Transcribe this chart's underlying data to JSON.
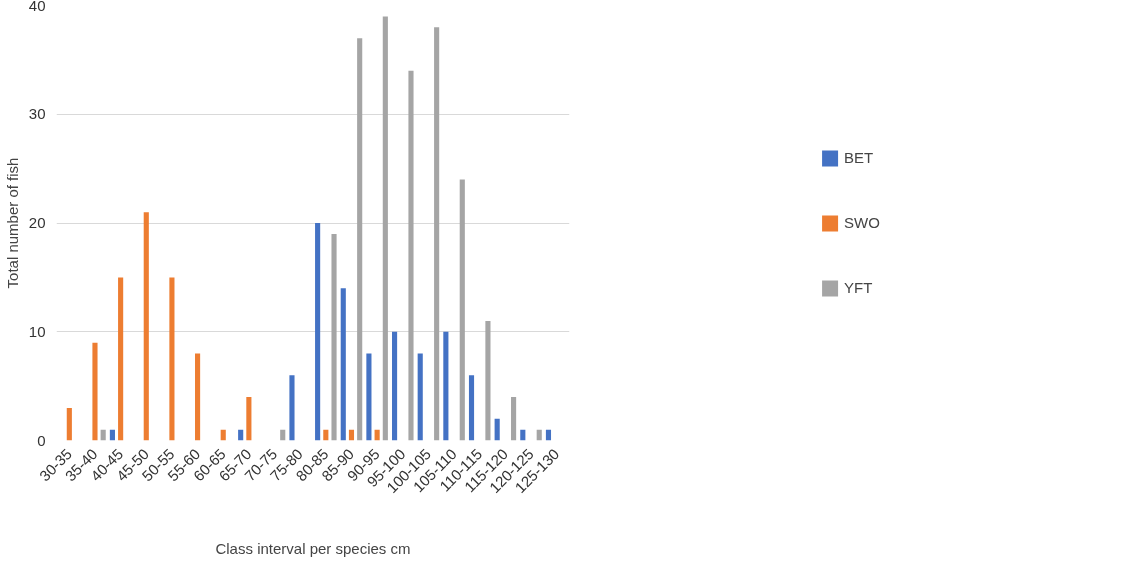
{
  "chart_data": {
    "type": "bar",
    "xlabel": "Class interval per species cm",
    "ylabel": "Total number of fish",
    "categories": [
      "30-35",
      "35-40",
      "40-45",
      "45-50",
      "50-55",
      "55-60",
      "60-65",
      "65-70",
      "70-75",
      "75-80",
      "80-85",
      "85-90",
      "90-95",
      "95-100",
      "100-105",
      "105-110",
      "110-115",
      "115-120",
      "120-125",
      "125-130"
    ],
    "series": [
      {
        "name": "BET",
        "color": "#4472c4",
        "values": [
          0,
          0,
          1,
          0,
          0,
          0,
          0,
          1,
          0,
          6,
          20,
          14,
          8,
          10,
          8,
          10,
          6,
          2,
          1,
          1
        ]
      },
      {
        "name": "SWO",
        "color": "#ed7d31",
        "values": [
          3,
          9,
          15,
          21,
          15,
          8,
          1,
          4,
          0,
          0,
          1,
          1,
          1,
          0,
          0,
          0,
          0,
          0,
          0,
          0
        ]
      },
      {
        "name": "YFT",
        "color": "#a5a5a5",
        "values": [
          0,
          1,
          0,
          0,
          0,
          0,
          0,
          0,
          1,
          0,
          19,
          37,
          39,
          34,
          38,
          24,
          11,
          4,
          1,
          0
        ]
      }
    ],
    "ylim": [
      0,
      40
    ],
    "yticks": [
      0,
      10,
      20,
      30,
      40
    ],
    "grid": "y",
    "legend": "right"
  }
}
